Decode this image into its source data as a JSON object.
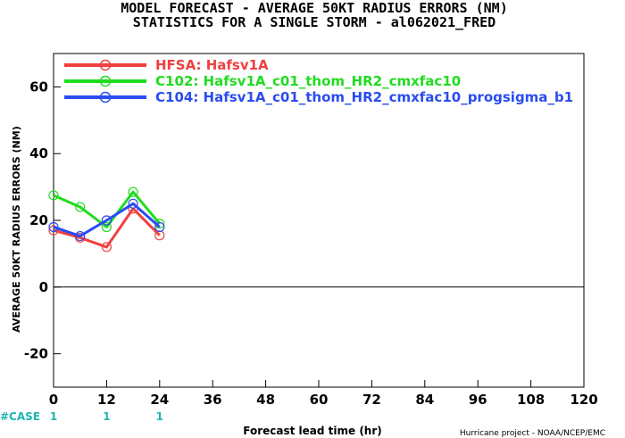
{
  "chart_data": {
    "type": "line",
    "title_line1": "MODEL FORECAST - AVERAGE 50KT RADIUS ERRORS (NM)",
    "title_line2": "STATISTICS FOR A SINGLE STORM - al062021_FRED",
    "xlabel": "Forecast lead time (hr)",
    "ylabel": "AVERAGE 50KT RADIUS ERRORS (NM)",
    "xlim": [
      0,
      120
    ],
    "ylim": [
      -30,
      70
    ],
    "xticks": [
      0,
      12,
      24,
      36,
      48,
      60,
      72,
      84,
      96,
      108,
      120
    ],
    "yticks": [
      -20,
      0,
      20,
      40,
      60
    ],
    "zero_line": true,
    "legend_position": "top-left",
    "series": [
      {
        "name": "HFSA: Hafsv1A",
        "color": "#f04040",
        "x": [
          0,
          6,
          12,
          18,
          24
        ],
        "y": [
          17,
          14.8,
          12,
          23.5,
          15.5
        ]
      },
      {
        "name": "C102: Hafsv1A_c01_thom_HR2_cmxfac10",
        "color": "#20dc20",
        "x": [
          0,
          6,
          12,
          18,
          24
        ],
        "y": [
          27.5,
          24,
          18,
          28.5,
          19
        ]
      },
      {
        "name": "C104: Hafsv1A_c01_thom_HR2_cmxfac10_progsigma_b1",
        "color": "#2a4cf0",
        "x": [
          0,
          6,
          12,
          18,
          24
        ],
        "y": [
          18,
          15.3,
          20,
          25,
          18
        ]
      }
    ],
    "case_label": "#CASE",
    "case_counts": [
      {
        "x": 0,
        "label": "1"
      },
      {
        "x": 12,
        "label": "1"
      },
      {
        "x": 24,
        "label": "1"
      }
    ],
    "credit": "Hurricane project - NOAA/NCEP/EMC"
  }
}
